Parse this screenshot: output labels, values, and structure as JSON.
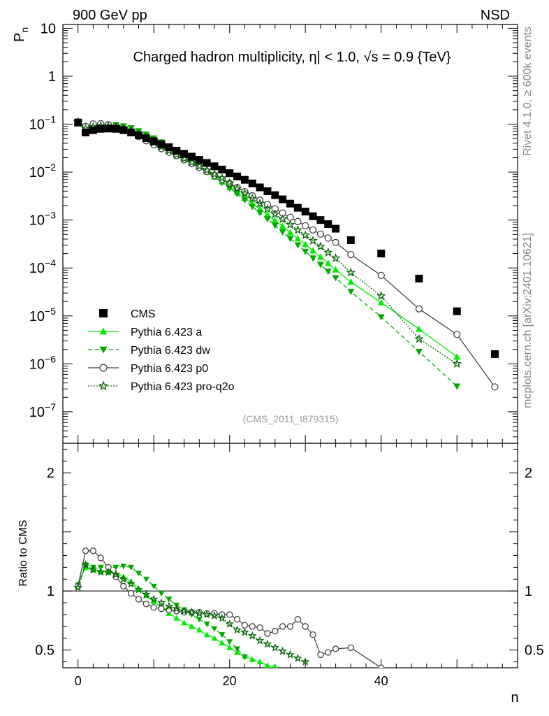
{
  "chart_data": {
    "type": "line",
    "title": "Charged hadron multiplicity, η| < 1.0, √s = 0.9 {TeV}",
    "top_left_label": "900 GeV pp",
    "top_right_label": "NSD",
    "ylabel": "P",
    "ylabel_sub": "n",
    "xlabel": "n",
    "ratio_ylabel": "Ratio to CMS",
    "analysis_label": "(CMS_2011_I879315)",
    "side_label_top": "Rivet 4.1.0, ≥ 600k events",
    "side_label_bottom": "mcplots.cern.ch [arXiv:2401.10621]",
    "xlim": [
      -2,
      58
    ],
    "ylim": [
      2.2e-08,
      12
    ],
    "ratio_ylim": [
      0.35,
      2.25
    ],
    "x_ticks": [
      0,
      20,
      40
    ],
    "x_tick_labels": [
      "0",
      "20",
      "40"
    ],
    "y_ticks": [
      1e-07,
      1e-06,
      1e-05,
      0.0001,
      0.001,
      0.01,
      0.1,
      1,
      10
    ],
    "y_tick_labels": [
      {
        "base": "10",
        "exp": "−7"
      },
      {
        "base": "10",
        "exp": "−6"
      },
      {
        "base": "10",
        "exp": "−5"
      },
      {
        "base": "10",
        "exp": "−4"
      },
      {
        "base": "10",
        "exp": "−3"
      },
      {
        "base": "10",
        "exp": "−2"
      },
      {
        "base": "10",
        "exp": "−1"
      },
      {
        "base": "1",
        "exp": ""
      },
      {
        "base": "10",
        "exp": ""
      }
    ],
    "ratio_ticks": [
      0.5,
      1,
      2
    ],
    "ratio_tick_labels": [
      "0.5",
      "1",
      "2"
    ],
    "series": [
      {
        "name": "CMS",
        "color": "#000000",
        "marker": "square",
        "line": "none",
        "x": [
          0,
          1,
          2,
          3,
          4,
          5,
          6,
          7,
          8,
          9,
          10,
          11,
          12,
          13,
          14,
          15,
          16,
          17,
          18,
          19,
          20,
          21,
          22,
          23,
          24,
          25,
          26,
          27,
          28,
          29,
          30,
          31,
          32,
          33,
          34,
          36,
          40,
          45,
          50,
          55
        ],
        "y": [
          0.108,
          0.067,
          0.075,
          0.08,
          0.081,
          0.08,
          0.075,
          0.067,
          0.059,
          0.051,
          0.044,
          0.038,
          0.033,
          0.028,
          0.024,
          0.021,
          0.018,
          0.0155,
          0.0132,
          0.0113,
          0.0095,
          0.0081,
          0.0069,
          0.0058,
          0.0048,
          0.004,
          0.0033,
          0.0027,
          0.0022,
          0.0018,
          0.0015,
          0.0012,
          0.001,
          0.00082,
          0.00066,
          0.00038,
          0.0002,
          6e-05,
          1.25e-05,
          1.6e-06
        ]
      },
      {
        "name": "Pythia 6.423 a",
        "color": "#00ee00",
        "marker": "triangle-up",
        "line": "solid",
        "x": [
          0,
          1,
          2,
          3,
          4,
          5,
          6,
          7,
          8,
          9,
          10,
          11,
          12,
          13,
          14,
          15,
          16,
          17,
          18,
          19,
          20,
          21,
          22,
          23,
          24,
          25,
          26,
          27,
          28,
          29,
          30,
          31,
          32,
          33,
          34,
          36,
          40,
          45,
          50
        ],
        "y": [
          0.114,
          0.08,
          0.088,
          0.093,
          0.093,
          0.092,
          0.087,
          0.078,
          0.067,
          0.056,
          0.046,
          0.038,
          0.031,
          0.025,
          0.02,
          0.016,
          0.0128,
          0.0101,
          0.008,
          0.0063,
          0.0049,
          0.0038,
          0.0029,
          0.0022,
          0.0017,
          0.0013,
          0.00098,
          0.00074,
          0.00055,
          0.00041,
          0.00031,
          0.00023,
          0.00017,
          0.000125,
          9.2e-05,
          5.1e-05,
          1.9e-05,
          5.3e-06,
          1.4e-06
        ],
        "ratio_x": [
          0,
          1,
          2,
          3,
          4,
          5,
          6,
          7,
          8,
          9,
          10,
          11,
          12,
          13,
          14,
          15,
          16,
          17,
          18,
          19,
          20,
          21,
          22,
          23,
          24,
          25,
          26
        ],
        "ratio": [
          1.06,
          1.2,
          1.18,
          1.17,
          1.16,
          1.15,
          1.12,
          1.08,
          1.02,
          0.96,
          0.91,
          0.86,
          0.81,
          0.77,
          0.73,
          0.7,
          0.67,
          0.63,
          0.6,
          0.56,
          0.52,
          0.48,
          0.45,
          0.42,
          0.4,
          0.37,
          0.36
        ]
      },
      {
        "name": "Pythia 6.423 dw",
        "color": "#00aa00",
        "marker": "triangle-down",
        "line": "dashed",
        "x": [
          0,
          1,
          2,
          3,
          4,
          5,
          6,
          7,
          8,
          9,
          10,
          11,
          12,
          13,
          14,
          15,
          16,
          17,
          18,
          19,
          20,
          21,
          22,
          23,
          24,
          25,
          26,
          27,
          28,
          29,
          30,
          31,
          32,
          33,
          34,
          36,
          40,
          45,
          50
        ],
        "y": [
          0.113,
          0.082,
          0.09,
          0.096,
          0.097,
          0.096,
          0.091,
          0.083,
          0.072,
          0.061,
          0.051,
          0.042,
          0.034,
          0.027,
          0.021,
          0.017,
          0.013,
          0.0101,
          0.0078,
          0.006,
          0.0046,
          0.0035,
          0.0026,
          0.0019,
          0.00142,
          0.00105,
          0.00077,
          0.00056,
          0.00041,
          0.0003,
          0.00022,
          0.00016,
          0.000117,
          8.5e-05,
          6.2e-05,
          3.2e-05,
          9.5e-06,
          1.8e-06,
          3.4e-07
        ],
        "ratio_x": [
          0,
          1,
          2,
          3,
          4,
          5,
          6,
          7,
          8,
          9,
          10,
          11,
          12,
          13,
          14,
          15,
          16,
          17,
          18,
          19,
          20,
          21,
          22
        ],
        "ratio": [
          1.05,
          1.22,
          1.2,
          1.2,
          1.2,
          1.2,
          1.21,
          1.2,
          1.15,
          1.1,
          1.04,
          0.98,
          0.93,
          0.88,
          0.84,
          0.8,
          0.76,
          0.72,
          0.68,
          0.63,
          0.57,
          0.51,
          0.44
        ]
      },
      {
        "name": "Pythia 6.423 p0",
        "color": "#444444",
        "marker": "circle-open",
        "line": "solid",
        "x": [
          0,
          1,
          2,
          3,
          4,
          5,
          6,
          7,
          8,
          9,
          10,
          11,
          12,
          13,
          14,
          15,
          16,
          17,
          18,
          19,
          20,
          21,
          22,
          23,
          24,
          25,
          26,
          27,
          28,
          29,
          30,
          31,
          32,
          33,
          34,
          36,
          40,
          45,
          50,
          55
        ],
        "y": [
          0.112,
          0.09,
          0.101,
          0.102,
          0.097,
          0.089,
          0.078,
          0.066,
          0.055,
          0.045,
          0.037,
          0.031,
          0.026,
          0.022,
          0.018,
          0.015,
          0.0125,
          0.0103,
          0.0085,
          0.007,
          0.0058,
          0.0048,
          0.0039,
          0.0032,
          0.0026,
          0.0021,
          0.00172,
          0.0014,
          0.00114,
          0.00093,
          0.00076,
          0.00062,
          0.00051,
          0.00042,
          0.00034,
          0.00019,
          7e-05,
          1.4e-05,
          4.1e-06,
          3.3e-07
        ],
        "ratio_x": [
          0,
          1,
          2,
          3,
          4,
          5,
          6,
          7,
          8,
          9,
          10,
          11,
          12,
          13,
          14,
          15,
          16,
          17,
          18,
          19,
          20,
          21,
          22,
          23,
          24,
          25,
          26,
          27,
          28,
          29,
          30,
          31,
          32,
          33,
          34,
          36,
          40
        ],
        "ratio": [
          1.04,
          1.34,
          1.34,
          1.28,
          1.2,
          1.12,
          1.04,
          0.98,
          0.93,
          0.89,
          0.86,
          0.85,
          0.84,
          0.83,
          0.82,
          0.82,
          0.82,
          0.81,
          0.81,
          0.8,
          0.8,
          0.76,
          0.71,
          0.7,
          0.69,
          0.64,
          0.66,
          0.7,
          0.7,
          0.76,
          0.7,
          0.63,
          0.46,
          0.48,
          0.51,
          0.52,
          0.35
        ]
      },
      {
        "name": "Pythia 6.423 pro-q2o",
        "color": "#006600",
        "marker": "star-open",
        "line": "dotted",
        "x": [
          0,
          1,
          2,
          3,
          4,
          5,
          6,
          7,
          8,
          9,
          10,
          11,
          12,
          13,
          14,
          15,
          16,
          17,
          18,
          19,
          20,
          21,
          22,
          23,
          24,
          25,
          26,
          27,
          28,
          29,
          30,
          31,
          32,
          33,
          34,
          36,
          40,
          45,
          50
        ],
        "y": [
          0.11,
          0.081,
          0.088,
          0.091,
          0.09,
          0.087,
          0.081,
          0.071,
          0.06,
          0.05,
          0.041,
          0.034,
          0.028,
          0.023,
          0.019,
          0.016,
          0.0133,
          0.011,
          0.0091,
          0.0075,
          0.0059,
          0.0046,
          0.0036,
          0.0028,
          0.0022,
          0.0017,
          0.00133,
          0.00104,
          0.0008,
          0.00062,
          0.00048,
          0.00037,
          0.00028,
          0.00021,
          0.00016,
          8e-05,
          2.6e-05,
          3.3e-06,
          1e-06
        ],
        "ratio_x": [
          0,
          1,
          2,
          3,
          4,
          5,
          6,
          7,
          8,
          9,
          10,
          11,
          12,
          13,
          14,
          15,
          16,
          17,
          18,
          19,
          20,
          21,
          22,
          23,
          24,
          25,
          26,
          27,
          28,
          29,
          30
        ],
        "ratio": [
          1.03,
          1.22,
          1.18,
          1.16,
          1.16,
          1.14,
          1.1,
          1.06,
          1.01,
          0.97,
          0.93,
          0.9,
          0.87,
          0.85,
          0.83,
          0.82,
          0.81,
          0.8,
          0.79,
          0.77,
          0.72,
          0.67,
          0.65,
          0.62,
          0.58,
          0.55,
          0.52,
          0.49,
          0.46,
          0.43,
          0.4
        ]
      }
    ]
  }
}
